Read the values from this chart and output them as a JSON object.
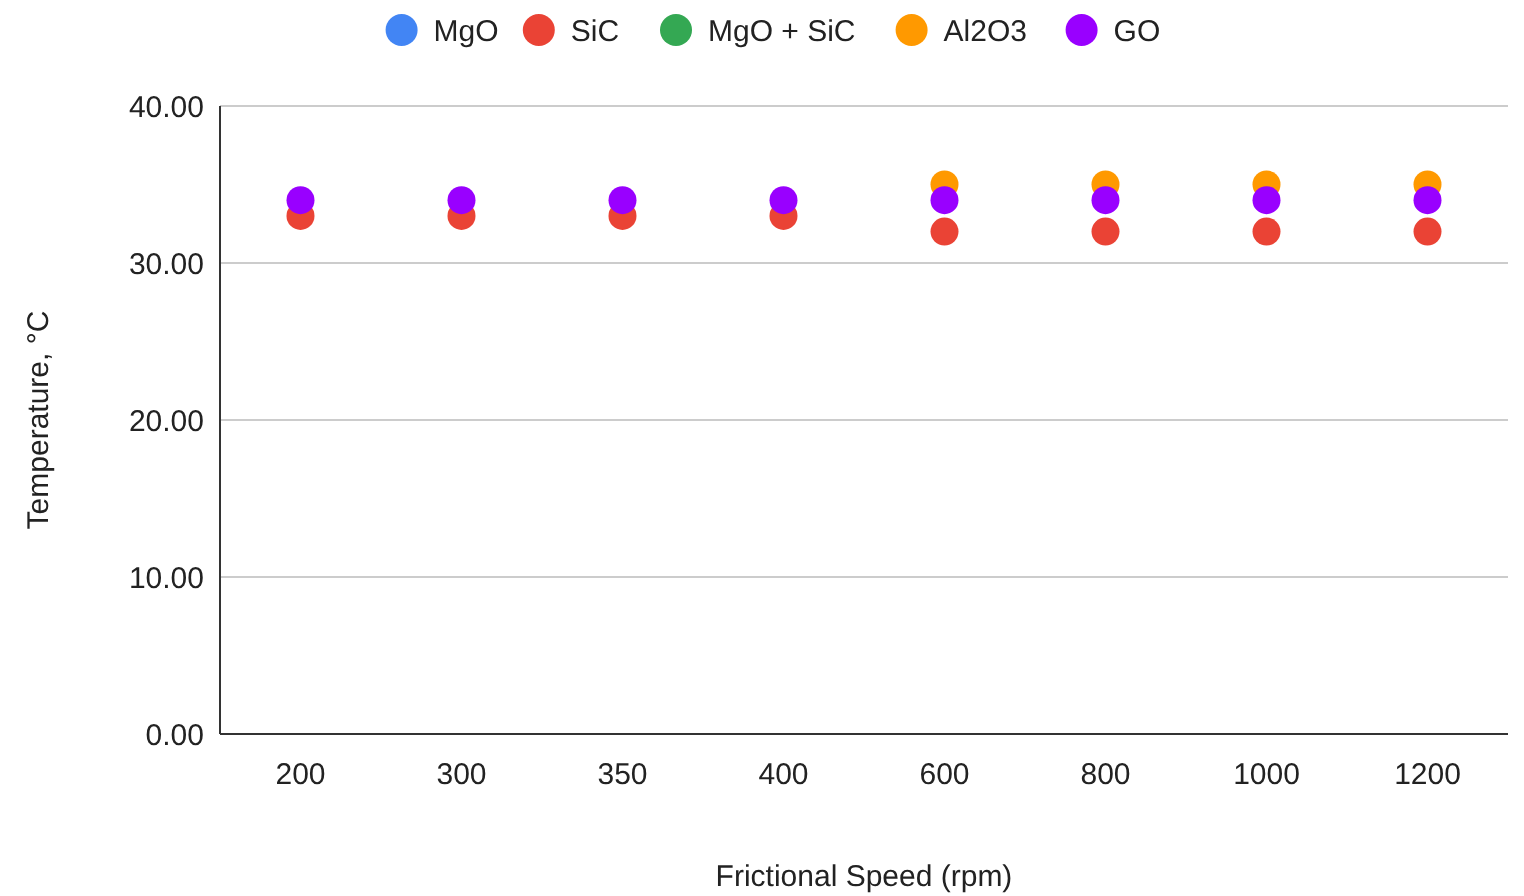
{
  "chart_data": {
    "type": "scatter",
    "xlabel": "Frictional Speed (rpm)",
    "ylabel": "Temperature, °C",
    "categories": [
      "200",
      "300",
      "350",
      "400",
      "600",
      "800",
      "1000",
      "1200"
    ],
    "ylim": [
      0,
      40
    ],
    "yticks": [
      {
        "value": 0,
        "label": "0.00"
      },
      {
        "value": 10,
        "label": "10.00"
      },
      {
        "value": 20,
        "label": "20.00"
      },
      {
        "value": 30,
        "label": "30.00"
      },
      {
        "value": 40,
        "label": "40.00"
      }
    ],
    "grid": "y",
    "legend": "top",
    "marker": "circle",
    "series": [
      {
        "name": "MgO",
        "color": "#4285f4",
        "values": [
          null,
          null,
          null,
          null,
          null,
          null,
          null,
          null
        ]
      },
      {
        "name": "SiC",
        "color": "#ea4335",
        "values": [
          33,
          33,
          33,
          33,
          32,
          32,
          32,
          32
        ]
      },
      {
        "name": "MgO + SiC",
        "color": "#34a853",
        "values": [
          null,
          null,
          null,
          null,
          null,
          null,
          null,
          null
        ]
      },
      {
        "name": "Al2O3",
        "color": "#ff9900",
        "values": [
          null,
          null,
          null,
          null,
          35,
          35,
          35,
          35
        ]
      },
      {
        "name": "GO",
        "color": "#9900ff",
        "values": [
          34,
          34,
          34,
          34,
          34,
          34,
          34,
          34
        ]
      }
    ]
  }
}
